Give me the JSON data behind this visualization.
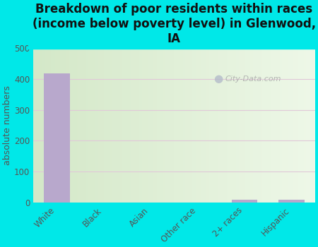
{
  "categories": [
    "White",
    "Black",
    "Asian",
    "Other race",
    "2+ races",
    "Hispanic"
  ],
  "values": [
    419,
    0,
    0,
    0,
    10,
    10
  ],
  "bar_color": "#b8a8cc",
  "title": "Breakdown of poor residents within races\n(income below poverty level) in Glenwood,\nIA",
  "ylabel": "absolute numbers",
  "ylim": [
    0,
    500
  ],
  "yticks": [
    0,
    100,
    200,
    300,
    400,
    500
  ],
  "background_outer": "#00e8e8",
  "background_grad_left": "#d4e8c8",
  "background_grad_right": "#eef5e8",
  "grid_color": "#e8d8e8",
  "watermark": "City-Data.com",
  "title_fontsize": 12,
  "ylabel_fontsize": 9,
  "tick_fontsize": 8.5
}
